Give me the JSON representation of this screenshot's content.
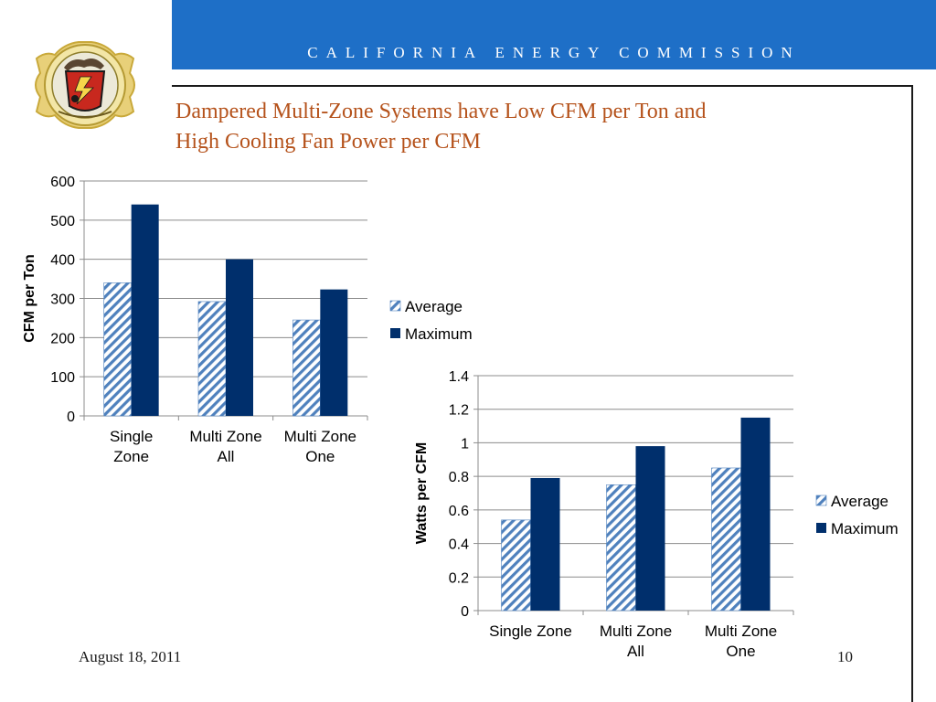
{
  "header": {
    "organization": "CALIFORNIA ENERGY COMMISSION",
    "banner_color": "#1e6fc7"
  },
  "logo": {
    "icon": "state-seal-icon"
  },
  "slide": {
    "title_line1": "Dampered Multi-Zone Systems have Low CFM per Ton and",
    "title_line2": "High Cooling Fan Power per CFM",
    "title_color": "#b5521b"
  },
  "footer": {
    "date": "August 18, 2011",
    "page": "10"
  },
  "chart_data": [
    {
      "type": "bar",
      "categories": [
        [
          "Single",
          "Zone"
        ],
        [
          "Multi Zone",
          "All"
        ],
        [
          "Multi Zone",
          "One"
        ]
      ],
      "series": [
        {
          "name": "Average",
          "values": [
            340,
            292,
            245
          ],
          "color": "#4f81bd",
          "pattern": "diagonal-hatch"
        },
        {
          "name": "Maximum",
          "values": [
            540,
            400,
            323
          ],
          "color": "#002f6c",
          "pattern": "solid"
        }
      ],
      "ylabel": "CFM per Ton",
      "ylim": [
        0,
        600
      ],
      "yticks": [
        "0",
        "100",
        "200",
        "300",
        "400",
        "500",
        "600"
      ],
      "grid": true,
      "legend": "right"
    },
    {
      "type": "bar",
      "categories": [
        [
          "Single Zone"
        ],
        [
          "Multi Zone",
          "All"
        ],
        [
          "Multi Zone",
          "One"
        ]
      ],
      "series": [
        {
          "name": "Average",
          "values": [
            0.54,
            0.75,
            0.85
          ],
          "color": "#4f81bd",
          "pattern": "diagonal-hatch"
        },
        {
          "name": "Maximum",
          "values": [
            0.79,
            0.98,
            1.15
          ],
          "color": "#002f6c",
          "pattern": "solid"
        }
      ],
      "ylabel": "Watts per CFM",
      "ylim": [
        0,
        1.4
      ],
      "yticks": [
        "0",
        "0.2",
        "0.4",
        "0.6",
        "0.8",
        "1",
        "1.2",
        "1.4"
      ],
      "grid": true,
      "legend": "right"
    }
  ]
}
